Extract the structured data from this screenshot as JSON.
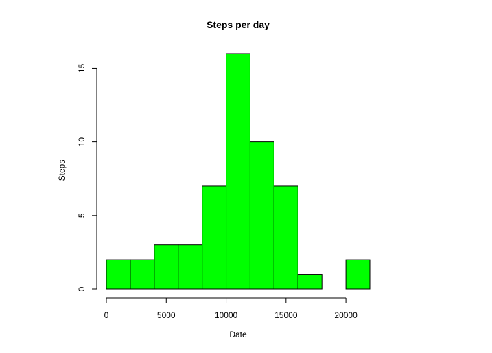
{
  "chart_data": {
    "type": "bar",
    "title": "Steps per day",
    "xlabel": "Date",
    "ylabel": "Steps",
    "bins": [
      {
        "x0": 0,
        "x1": 2000,
        "count": 2
      },
      {
        "x0": 2000,
        "x1": 4000,
        "count": 2
      },
      {
        "x0": 4000,
        "x1": 6000,
        "count": 3
      },
      {
        "x0": 6000,
        "x1": 8000,
        "count": 3
      },
      {
        "x0": 8000,
        "x1": 10000,
        "count": 7
      },
      {
        "x0": 10000,
        "x1": 12000,
        "count": 16
      },
      {
        "x0": 12000,
        "x1": 14000,
        "count": 10
      },
      {
        "x0": 14000,
        "x1": 16000,
        "count": 7
      },
      {
        "x0": 16000,
        "x1": 18000,
        "count": 1
      },
      {
        "x0": 18000,
        "x1": 20000,
        "count": 0
      },
      {
        "x0": 20000,
        "x1": 22000,
        "count": 2
      }
    ],
    "xlim": [
      0,
      22000
    ],
    "ylim": [
      0,
      16
    ],
    "xticks": [
      0,
      5000,
      10000,
      15000,
      20000
    ],
    "xtick_labels": [
      "0",
      "5000",
      "10000",
      "15000",
      "20000"
    ],
    "yticks": [
      0,
      5,
      10,
      15
    ],
    "ytick_labels": [
      "0",
      "5",
      "10",
      "15"
    ],
    "bar_color": "#00ff00",
    "grid": false
  }
}
